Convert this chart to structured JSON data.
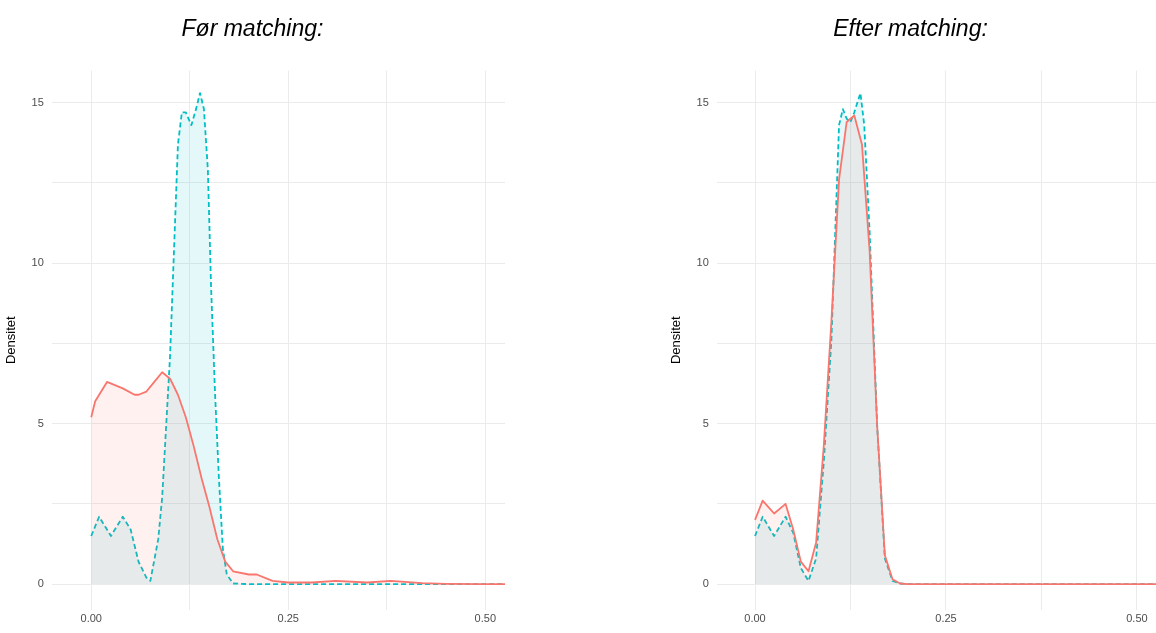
{
  "chart_data": [
    {
      "type": "area",
      "title": "Før matching:",
      "ylabel": "Densitet",
      "xlim": [
        -0.05,
        0.525
      ],
      "ylim": [
        -0.8,
        16
      ],
      "xticks": [
        {
          "value": 0,
          "label": "0.00"
        },
        {
          "value": 0.125,
          "label": null
        },
        {
          "value": 0.25,
          "label": "0.25"
        },
        {
          "value": 0.375,
          "label": null
        },
        {
          "value": 0.5,
          "label": "0.50"
        }
      ],
      "yticks": [
        0,
        {
          "value": 2.5,
          "label": null
        },
        5,
        {
          "value": 7.5,
          "label": null
        },
        10,
        {
          "value": 12.5,
          "label": null
        },
        15
      ],
      "grid": true,
      "legend": false,
      "marker": "none",
      "series": [
        {
          "color": "#f8766d",
          "line_style": "solid",
          "x": [
            0,
            0.005,
            0.02,
            0.04,
            0.055,
            0.06,
            0.07,
            0.08,
            0.09,
            0.1,
            0.11,
            0.12,
            0.13,
            0.14,
            0.15,
            0.16,
            0.17,
            0.18,
            0.2,
            0.21,
            0.23,
            0.25,
            0.28,
            0.31,
            0.35,
            0.38,
            0.42,
            0.45,
            0.5,
            0.525
          ],
          "values": [
            5.2,
            5.7,
            6.3,
            6.1,
            5.9,
            5.9,
            6.0,
            6.3,
            6.6,
            6.4,
            5.9,
            5.2,
            4.3,
            3.3,
            2.4,
            1.4,
            0.7,
            0.4,
            0.3,
            0.3,
            0.1,
            0.05,
            0.05,
            0.1,
            0.05,
            0.1,
            0.03,
            0.01,
            0,
            0
          ]
        },
        {
          "color": "#00bfc4",
          "line_style": "dashed",
          "x": [
            0,
            0.01,
            0.025,
            0.04,
            0.05,
            0.06,
            0.07,
            0.075,
            0.085,
            0.09,
            0.095,
            0.1,
            0.105,
            0.11,
            0.115,
            0.12,
            0.127,
            0.133,
            0.138,
            0.143,
            0.148,
            0.152,
            0.157,
            0.162,
            0.167,
            0.172,
            0.18,
            0.2,
            0.525
          ],
          "values": [
            1.5,
            2.1,
            1.5,
            2.1,
            1.7,
            0.7,
            0.2,
            0.1,
            1.4,
            2.7,
            4.9,
            7.1,
            10.4,
            13.7,
            14.7,
            14.7,
            14.3,
            14.8,
            15.3,
            14.8,
            12.9,
            9.3,
            6.0,
            3.3,
            1.1,
            0.3,
            0.02,
            0,
            0
          ]
        }
      ]
    },
    {
      "type": "area",
      "title": "Efter matching:",
      "ylabel": "Densitet",
      "xlim": [
        -0.05,
        0.525
      ],
      "ylim": [
        -0.8,
        16
      ],
      "xticks": [
        {
          "value": 0,
          "label": "0.00"
        },
        {
          "value": 0.125,
          "label": null
        },
        {
          "value": 0.25,
          "label": "0.25"
        },
        {
          "value": 0.375,
          "label": null
        },
        {
          "value": 0.5,
          "label": "0.50"
        }
      ],
      "yticks": [
        0,
        {
          "value": 2.5,
          "label": null
        },
        5,
        {
          "value": 7.5,
          "label": null
        },
        10,
        {
          "value": 12.5,
          "label": null
        },
        15
      ],
      "grid": true,
      "legend": false,
      "marker": "none",
      "series": [
        {
          "color": "#f8766d",
          "line_style": "solid",
          "x": [
            0,
            0.01,
            0.025,
            0.04,
            0.05,
            0.06,
            0.07,
            0.08,
            0.09,
            0.1,
            0.11,
            0.12,
            0.13,
            0.14,
            0.15,
            0.16,
            0.17,
            0.18,
            0.19,
            0.2,
            0.525
          ],
          "values": [
            2.0,
            2.6,
            2.2,
            2.5,
            1.7,
            0.7,
            0.4,
            1.3,
            4.3,
            8.2,
            12.6,
            14.4,
            14.6,
            13.7,
            10.4,
            4.9,
            0.9,
            0.15,
            0.02,
            0,
            0
          ]
        },
        {
          "color": "#00bfc4",
          "line_style": "dashed",
          "x": [
            0,
            0.01,
            0.025,
            0.04,
            0.05,
            0.06,
            0.07,
            0.08,
            0.09,
            0.1,
            0.11,
            0.115,
            0.12,
            0.125,
            0.13,
            0.138,
            0.143,
            0.15,
            0.16,
            0.17,
            0.18,
            0.19,
            0.2,
            0.525
          ],
          "values": [
            1.5,
            2.1,
            1.5,
            2.1,
            1.6,
            0.5,
            0.1,
            0.8,
            3.8,
            7.6,
            14.3,
            14.8,
            14.5,
            14.4,
            14.7,
            15.3,
            14.3,
            11.0,
            4.9,
            0.8,
            0.1,
            0.02,
            0,
            0
          ]
        }
      ]
    }
  ]
}
